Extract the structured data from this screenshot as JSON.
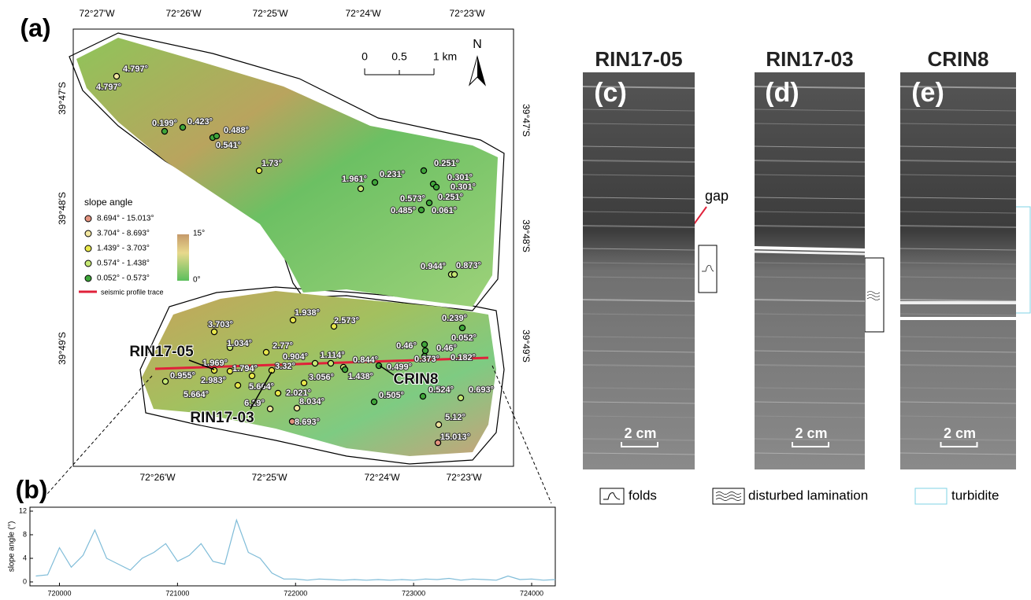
{
  "panel_labels": [
    "(a)",
    "(b)"
  ],
  "map": {
    "top_lon_labels": [
      "72°27'W",
      "72°26'W",
      "72°25'W",
      "72°24'W",
      "72°23'W"
    ],
    "bottom_lon_labels": [
      "72°26'W",
      "72°25'W",
      "72°24'W",
      "72°23'W"
    ],
    "left_lat_labels": [
      "39°47'S",
      "39°48'S",
      "39°49'S"
    ],
    "right_lat_labels": [
      "39°47'S",
      "39°48'S",
      "39°49'S"
    ],
    "scale_labels": [
      "0",
      "0.5",
      "1 km"
    ],
    "north": "N",
    "legend": {
      "title": "slope angle",
      "classes": [
        {
          "label": "8.694° - 15.013°",
          "color": "#e3937f"
        },
        {
          "label": "3.704° - 8.693°",
          "color": "#f3e7a0"
        },
        {
          "label": "1.439° - 3.703°",
          "color": "#e9e84c"
        },
        {
          "label": "0.574° - 1.438°",
          "color": "#c6e874"
        },
        {
          "label": "0.052° - 0.573°",
          "color": "#3fa63a"
        }
      ],
      "colorbar_labels": [
        "15°",
        "0°"
      ],
      "profile": "seismic profile trace",
      "profile_color": "#e0213a"
    },
    "point_labels": [
      "4.797°",
      "4.797°",
      "0.199°",
      "0.423°",
      "0.488°",
      "0.541°",
      "1.73°",
      "1.961°",
      "0.231°",
      "0.251°",
      "0.301°",
      "0.301°",
      "0.573°",
      "0.251°",
      "0.485°",
      "0.061°",
      "0.944°",
      "0.873°",
      "3.703°",
      "1.938°",
      "2.573°",
      "0.239°",
      "1.034°",
      "2.77°",
      "0.46°",
      "0.052°",
      "0.46°",
      "0.904°",
      "1.114°",
      "0.182°",
      "1.969°",
      "1.794°",
      "3.32°",
      "0.844°",
      "0.373°",
      "0.499°",
      "0.955°",
      "2.983°",
      "5.664°",
      "3.056°",
      "1.438°",
      "5.664°",
      "2.021°",
      "0.505°",
      "0.524°",
      "0.693°",
      "6.19°",
      "8.034°",
      "8.693°",
      "5.12°",
      "15.013°"
    ],
    "core_labels": [
      "RIN17-05",
      "RIN17-03",
      "CRIN8"
    ]
  },
  "chart_data": {
    "type": "line",
    "y_label": "slope angle (°)",
    "color": "#7fbcd8",
    "x": [
      719800,
      719900,
      720000,
      720100,
      720200,
      720300,
      720400,
      720500,
      720600,
      720700,
      720800,
      720900,
      721000,
      721100,
      721200,
      721300,
      721400,
      721500,
      721600,
      721700,
      721800,
      721900,
      722000,
      722100,
      722200,
      722300,
      722400,
      722500,
      722600,
      722700,
      722800,
      722900,
      723000,
      723100,
      723200,
      723300,
      723400,
      723500,
      723600,
      723700,
      723800,
      723900,
      724000,
      724100,
      724200
    ],
    "values": [
      1,
      1.2,
      5.8,
      2.5,
      4.5,
      8.8,
      4,
      3,
      2,
      4,
      5,
      6.5,
      3.5,
      4.5,
      6.5,
      3.5,
      3,
      10.5,
      5,
      4,
      1.5,
      0.5,
      0.5,
      0.3,
      0.5,
      0.4,
      0.3,
      0.4,
      0.3,
      0.4,
      0.3,
      0.4,
      0.3,
      0.5,
      0.4,
      0.6,
      0.3,
      0.5,
      0.4,
      0.3,
      1,
      0.4,
      0.5,
      0.3,
      0.4
    ],
    "xlim": [
      719750,
      724200
    ],
    "xticks": [
      720000,
      721000,
      722000,
      723000,
      724000
    ],
    "ylim": [
      0,
      12
    ],
    "yticks": [
      0,
      4,
      8,
      12
    ]
  },
  "cores": [
    {
      "title": "RIN17-05",
      "label": "(c)",
      "scale": "2 cm"
    },
    {
      "title": "RIN17-03",
      "label": "(d)",
      "scale": "2 cm"
    },
    {
      "title": "CRIN8",
      "label": "(e)",
      "scale": "2 cm"
    }
  ],
  "gap_label": "gap",
  "key": [
    "folds",
    "disturbed lamination",
    "turbidite"
  ]
}
